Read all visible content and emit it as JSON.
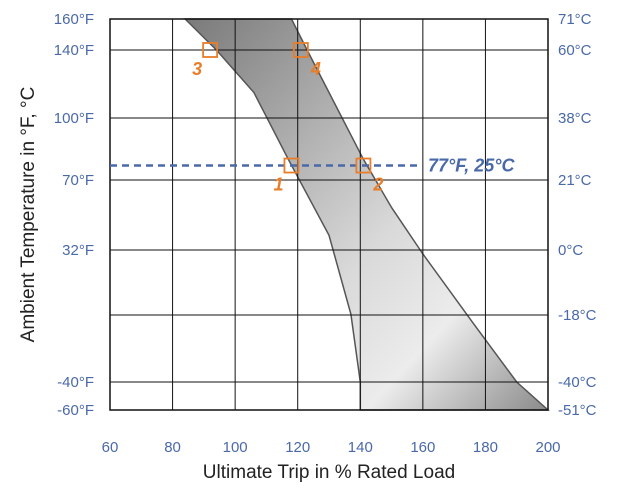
{
  "chart_data": {
    "type": "area",
    "xlabel": "Ultimate Trip in % Rated Load",
    "ylabel": "Ambient Temperature in °F, °C",
    "xlim": [
      60,
      200
    ],
    "x_ticks": [
      {
        "value": 60,
        "label": "60"
      },
      {
        "value": 80,
        "label": "80"
      },
      {
        "value": 100,
        "label": "100"
      },
      {
        "value": 120,
        "label": "120"
      },
      {
        "value": 140,
        "label": "140"
      },
      {
        "value": 160,
        "label": "160"
      },
      {
        "value": 180,
        "label": "180"
      },
      {
        "value": 200,
        "label": "200"
      }
    ],
    "y_left_ticks": [
      {
        "value": -60,
        "label": "-60°F"
      },
      {
        "value": -40,
        "label": "-40°F"
      },
      {
        "value": 32,
        "label": "32°F"
      },
      {
        "value": 70,
        "label": "70°F"
      },
      {
        "value": 100,
        "label": "100°F"
      },
      {
        "value": 140,
        "label": "140°F"
      },
      {
        "value": 160,
        "label": "160°F"
      }
    ],
    "y_right_ticks": [
      {
        "value": -60,
        "label": "-51°C"
      },
      {
        "value": -40,
        "label": "-40°C"
      },
      {
        "value": -0.4,
        "label": "-18°C"
      },
      {
        "value": 32,
        "label": "0°C"
      },
      {
        "value": 70,
        "label": "21°C"
      },
      {
        "value": 100,
        "label": "38°C"
      },
      {
        "value": 140,
        "label": "60°C"
      },
      {
        "value": 160,
        "label": "71°C"
      }
    ],
    "grid": true,
    "band": {
      "left_edge": [
        [
          84,
          160
        ],
        [
          94,
          140
        ],
        [
          106,
          115
        ],
        [
          117,
          80
        ],
        [
          130,
          40
        ],
        [
          137,
          0
        ],
        [
          140,
          -40
        ],
        [
          140,
          -60
        ]
      ],
      "right_edge": [
        [
          200,
          -60
        ],
        [
          190,
          -40
        ],
        [
          176,
          -5
        ],
        [
          160,
          30
        ],
        [
          150,
          55
        ],
        [
          141,
          80
        ],
        [
          130,
          115
        ],
        [
          123,
          140
        ],
        [
          118,
          160
        ]
      ],
      "color_dark": "#7a7a7a",
      "color_light": "#ececec"
    },
    "reference_line": {
      "y": 77,
      "label": "77°F, 25°C",
      "color": "#4a69a8"
    },
    "points": [
      {
        "label": "1",
        "x": 118,
        "y": 77,
        "label_pos": "bottom-left"
      },
      {
        "label": "2",
        "x": 141,
        "y": 77,
        "label_pos": "bottom-right"
      },
      {
        "label": "3",
        "x": 92,
        "y": 140,
        "label_pos": "bottom-left"
      },
      {
        "label": "4",
        "x": 121,
        "y": 140,
        "label_pos": "bottom-right"
      }
    ],
    "point_color": "#e87d2a"
  }
}
